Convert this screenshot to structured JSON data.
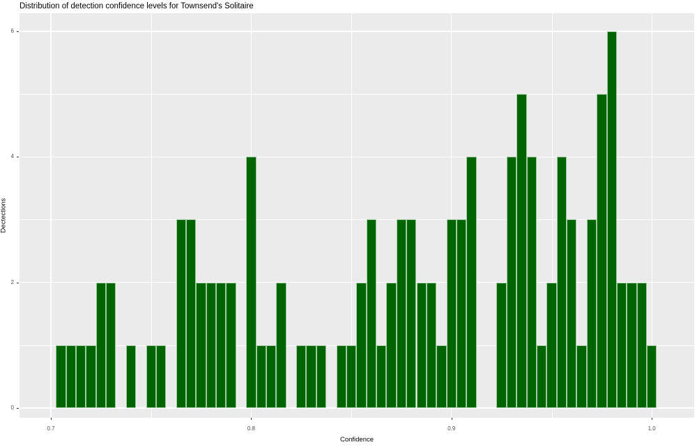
{
  "title": "Distribution of detection confidence levels for Townsend's Solitaire",
  "axes": {
    "x_label": "Confidence",
    "y_label": "Dectections",
    "x_tick_labels": [
      "0.7",
      "0.8",
      "0.9",
      "1.0"
    ],
    "y_tick_labels": [
      "0",
      "2",
      "4",
      "6"
    ]
  },
  "colors": {
    "bar_fill": "#006400",
    "bar_border": "#9fc99f",
    "panel_background": "#EBEBEB",
    "gridline": "#FFFFFF",
    "tick_label": "#4D4D4D",
    "text": "#000000"
  },
  "chart_data": {
    "type": "bar",
    "subtype": "histogram",
    "title": "Distribution of detection confidence levels for Townsend's Solitaire",
    "xlabel": "Confidence",
    "ylabel": "Dectections",
    "bin_start": 0.7025,
    "binwidth": 0.005,
    "counts": [
      1,
      1,
      1,
      1,
      2,
      2,
      0,
      1,
      0,
      1,
      1,
      0,
      3,
      3,
      2,
      2,
      2,
      2,
      0,
      4,
      1,
      1,
      2,
      0,
      1,
      1,
      1,
      0,
      1,
      1,
      2,
      3,
      1,
      2,
      3,
      3,
      2,
      2,
      1,
      3,
      3,
      4,
      0,
      0,
      2,
      4,
      5,
      4,
      1,
      2,
      4,
      3,
      1,
      3,
      5,
      6,
      2,
      2,
      2,
      1
    ],
    "x_ticks": {
      "values": [
        0.7,
        0.8,
        0.9,
        1.0
      ],
      "labels": [
        "0.7",
        "0.8",
        "0.9",
        "1.0"
      ]
    },
    "x_minor_ticks": [
      0.75,
      0.85,
      0.95
    ],
    "y_ticks": {
      "values": [
        0,
        2,
        4,
        6
      ],
      "labels": [
        "0",
        "2",
        "4",
        "6"
      ]
    },
    "y_minor_ticks": [
      1,
      3,
      5
    ],
    "xlim": [
      0.6843,
      1.0211
    ],
    "ylim": [
      0,
      6.29
    ],
    "grid": true,
    "legend": false
  }
}
